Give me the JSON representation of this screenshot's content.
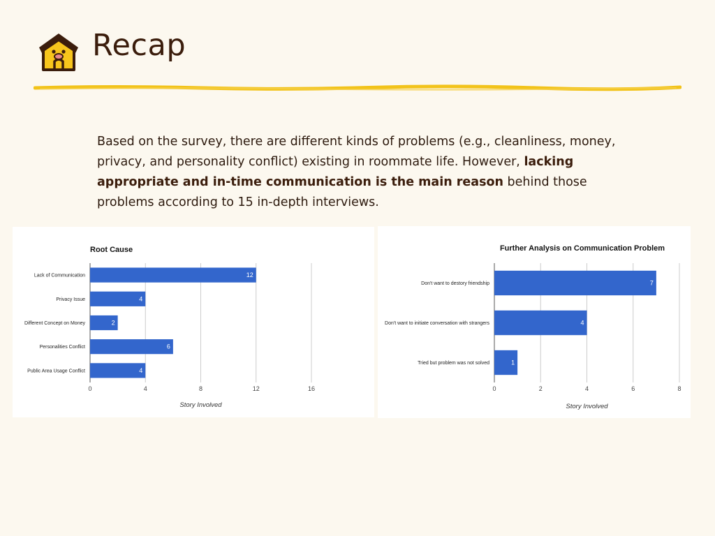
{
  "slide": {
    "title": "Recap",
    "paragraph": {
      "intro": "Based on the survey, there are different kinds of problems (e.g., cleanliness, money, privacy, and personality conflict) existing in roommate life. However, ",
      "emphasis": "lacking appropriate and in-time communication is the main reason",
      "outro": " behind those problems according to 15 in-depth interviews."
    },
    "colors": {
      "background": "#fcf8ef",
      "accent": "#f2c31a",
      "text": "#3b1d0c",
      "bar": "#3366cc"
    },
    "icon": "house-with-dog-face-icon"
  },
  "chart_data": [
    {
      "type": "bar",
      "orientation": "horizontal",
      "title": "Root Cause",
      "xlabel": "Story Involved",
      "ylabel": "",
      "categories": [
        "Lack of Communication",
        "Privacy Issue",
        "Different Concept on Money",
        "Personalities Conflict",
        "Public Area Usage Conflict"
      ],
      "values": [
        12,
        4,
        2,
        6,
        4
      ],
      "xlim": [
        0,
        16
      ],
      "ticks": [
        0,
        4,
        8,
        12,
        16
      ],
      "grid": true,
      "legend": "none",
      "data_labels": true
    },
    {
      "type": "bar",
      "orientation": "horizontal",
      "title": "Further Analysis on Communication Problem",
      "xlabel": "Story Involved",
      "ylabel": "",
      "categories": [
        "Don't want to destory friendship",
        "Don't want to initiate conversation with strangers",
        "Tried but problem was not solved"
      ],
      "values": [
        7,
        4,
        1
      ],
      "xlim": [
        0,
        8
      ],
      "ticks": [
        0,
        2,
        4,
        6,
        8
      ],
      "grid": true,
      "legend": "none",
      "data_labels": true
    }
  ]
}
